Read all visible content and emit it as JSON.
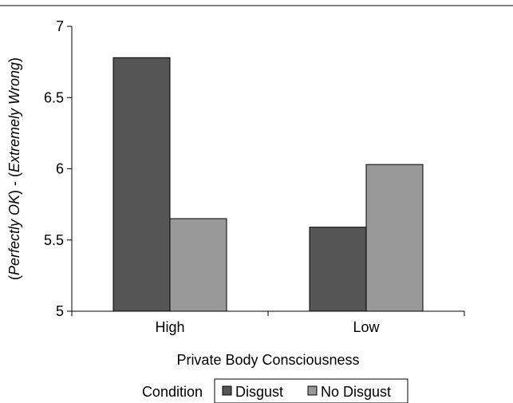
{
  "chart_data": {
    "type": "bar",
    "title": "",
    "xlabel": "Private Body Consciousness",
    "ylabel_parts": [
      "(",
      "Perfectly OK",
      ") - (",
      "Extremely Wrong",
      ")"
    ],
    "categories": [
      "High",
      "Low"
    ],
    "series": [
      {
        "name": "Disgust",
        "values": [
          6.78,
          5.59
        ],
        "color": "#555555"
      },
      {
        "name": "No Disgust",
        "values": [
          5.65,
          6.03
        ],
        "color": "#999999"
      }
    ],
    "ylim": [
      5,
      7
    ],
    "yticks": [
      5,
      5.5,
      6,
      6.5,
      7
    ],
    "ytick_labels": [
      "5",
      "5.5",
      "6",
      "6.5",
      "7"
    ],
    "grid": false,
    "legend": {
      "title": "Condition",
      "placement": "bottom",
      "entries": [
        "Disgust",
        "No Disgust"
      ]
    }
  }
}
